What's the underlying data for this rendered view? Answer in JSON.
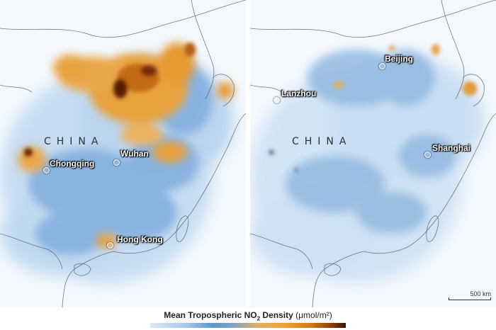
{
  "panels": [
    {
      "id": "left",
      "country_label": "CHINA",
      "cities": [
        {
          "name": "Chongqing"
        },
        {
          "name": "Wuhan"
        },
        {
          "name": "Hong Kong"
        }
      ]
    },
    {
      "id": "right",
      "country_label": "CHINA",
      "cities": [
        {
          "name": "Beijing"
        },
        {
          "name": "Lanzhou"
        },
        {
          "name": "Shanghai"
        }
      ],
      "scale_bar": "500 km"
    }
  ],
  "legend": {
    "title_prefix": "Mean Tropospheric NO",
    "subscript": "2",
    "title_suffix": " Density",
    "unit": "(μmol/m²)"
  },
  "colors": {
    "low": "#dbe9f7",
    "mid": "#5f97cc",
    "high": "#f0a233",
    "peak": "#3b1404",
    "background": "#e9f2fb"
  }
}
